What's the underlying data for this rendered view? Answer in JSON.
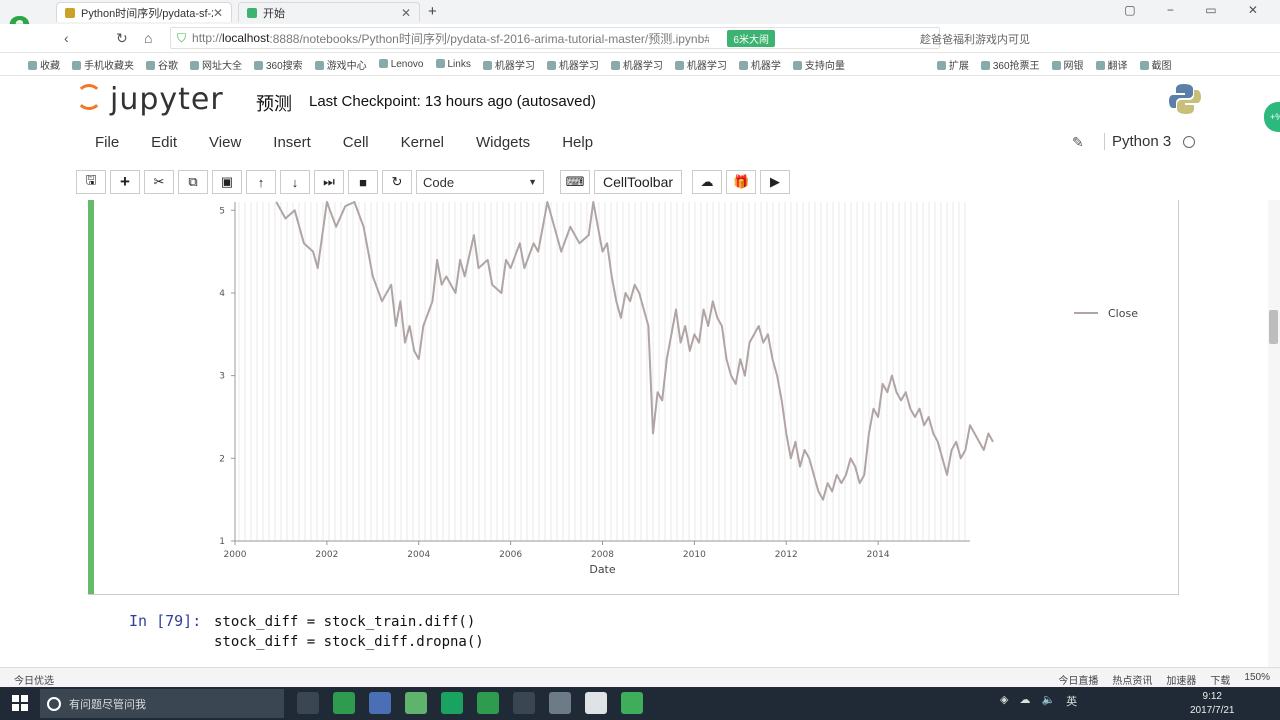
{
  "browser": {
    "tabs": [
      {
        "title": "Python时间序列/pydata-sf-201"
      },
      {
        "title": "开始"
      }
    ],
    "url_host": "localhost",
    "url_prefix": "http://",
    "url_rest": ":8888/notebooks/Python时间序列/pydata-sf-2016-arima-tutorial-master/预测.ipynb#",
    "badge": "6米大闹",
    "search_hint": "趁爸爸福利游戏内可见",
    "bookmarks": [
      "收藏",
      "手机收藏夹",
      "谷歌",
      "网址大全",
      "360搜索",
      "游戏中心",
      "Lenovo",
      "Links",
      "机器学习",
      "机器学习",
      "机器学习",
      "机器学习",
      "机器学",
      "支持向量",
      "扩展",
      "360抢票王",
      "网银",
      "翻译",
      "截图"
    ]
  },
  "jupyter": {
    "logo_text": "jupyter",
    "notebook_name": "预测",
    "checkpoint": "Last Checkpoint: 13 hours ago (autosaved)",
    "menu": [
      "File",
      "Edit",
      "View",
      "Insert",
      "Cell",
      "Kernel",
      "Widgets",
      "Help"
    ],
    "kernel_name": "Python 3",
    "cell_type": "Code",
    "celltoolbar_label": "CellToolbar"
  },
  "chart_data": {
    "type": "line",
    "xlabel": "Date",
    "ylabel": "",
    "x_ticks": [
      "2000",
      "2002",
      "2004",
      "2006",
      "2008",
      "2010",
      "2012",
      "2014"
    ],
    "y_ticks": [
      "1",
      "2",
      "3",
      "4",
      "5"
    ],
    "xlim": [
      2000,
      2016
    ],
    "ylim": [
      1,
      5.1
    ],
    "legend": {
      "placement": "right",
      "entries": [
        "Close"
      ]
    },
    "series": [
      {
        "name": "Close",
        "color": "#b0a4a4",
        "points": [
          [
            2000.9,
            5.1
          ],
          [
            2001.1,
            4.9
          ],
          [
            2001.3,
            5.0
          ],
          [
            2001.5,
            4.6
          ],
          [
            2001.7,
            4.5
          ],
          [
            2001.8,
            4.3
          ],
          [
            2002.0,
            5.1
          ],
          [
            2002.2,
            4.8
          ],
          [
            2002.4,
            5.05
          ],
          [
            2002.6,
            5.1
          ],
          [
            2002.8,
            4.8
          ],
          [
            2003.0,
            4.2
          ],
          [
            2003.2,
            3.9
          ],
          [
            2003.4,
            4.1
          ],
          [
            2003.5,
            3.6
          ],
          [
            2003.6,
            3.9
          ],
          [
            2003.7,
            3.4
          ],
          [
            2003.8,
            3.6
          ],
          [
            2003.9,
            3.3
          ],
          [
            2004.0,
            3.2
          ],
          [
            2004.1,
            3.6
          ],
          [
            2004.3,
            3.9
          ],
          [
            2004.4,
            4.4
          ],
          [
            2004.5,
            4.1
          ],
          [
            2004.6,
            4.2
          ],
          [
            2004.8,
            4.0
          ],
          [
            2004.9,
            4.4
          ],
          [
            2005.0,
            4.2
          ],
          [
            2005.2,
            4.7
          ],
          [
            2005.3,
            4.3
          ],
          [
            2005.5,
            4.4
          ],
          [
            2005.6,
            4.1
          ],
          [
            2005.8,
            4.0
          ],
          [
            2005.9,
            4.4
          ],
          [
            2006.0,
            4.3
          ],
          [
            2006.2,
            4.6
          ],
          [
            2006.3,
            4.3
          ],
          [
            2006.5,
            4.6
          ],
          [
            2006.6,
            4.5
          ],
          [
            2006.7,
            4.8
          ],
          [
            2006.8,
            5.1
          ],
          [
            2006.9,
            4.9
          ],
          [
            2007.1,
            4.5
          ],
          [
            2007.3,
            4.8
          ],
          [
            2007.5,
            4.6
          ],
          [
            2007.7,
            4.7
          ],
          [
            2007.8,
            5.1
          ],
          [
            2007.9,
            4.8
          ],
          [
            2008.0,
            4.5
          ],
          [
            2008.1,
            4.6
          ],
          [
            2008.2,
            4.2
          ],
          [
            2008.3,
            3.9
          ],
          [
            2008.4,
            3.7
          ],
          [
            2008.5,
            4.0
          ],
          [
            2008.6,
            3.9
          ],
          [
            2008.7,
            4.1
          ],
          [
            2008.8,
            4.0
          ],
          [
            2008.9,
            3.8
          ],
          [
            2009.0,
            3.6
          ],
          [
            2009.1,
            2.3
          ],
          [
            2009.2,
            2.8
          ],
          [
            2009.3,
            2.7
          ],
          [
            2009.4,
            3.2
          ],
          [
            2009.5,
            3.5
          ],
          [
            2009.6,
            3.8
          ],
          [
            2009.7,
            3.4
          ],
          [
            2009.8,
            3.6
          ],
          [
            2009.9,
            3.3
          ],
          [
            2010.0,
            3.5
          ],
          [
            2010.1,
            3.4
          ],
          [
            2010.2,
            3.8
          ],
          [
            2010.3,
            3.6
          ],
          [
            2010.4,
            3.9
          ],
          [
            2010.5,
            3.7
          ],
          [
            2010.6,
            3.6
          ],
          [
            2010.7,
            3.2
          ],
          [
            2010.8,
            3.0
          ],
          [
            2010.9,
            2.9
          ],
          [
            2011.0,
            3.2
          ],
          [
            2011.1,
            3.0
          ],
          [
            2011.2,
            3.4
          ],
          [
            2011.3,
            3.5
          ],
          [
            2011.4,
            3.6
          ],
          [
            2011.5,
            3.4
          ],
          [
            2011.6,
            3.5
          ],
          [
            2011.7,
            3.2
          ],
          [
            2011.8,
            3.0
          ],
          [
            2011.9,
            2.7
          ],
          [
            2012.0,
            2.3
          ],
          [
            2012.1,
            2.0
          ],
          [
            2012.2,
            2.2
          ],
          [
            2012.3,
            1.9
          ],
          [
            2012.4,
            2.1
          ],
          [
            2012.5,
            2.0
          ],
          [
            2012.6,
            1.8
          ],
          [
            2012.7,
            1.6
          ],
          [
            2012.8,
            1.5
          ],
          [
            2012.9,
            1.7
          ],
          [
            2013.0,
            1.6
          ],
          [
            2013.1,
            1.8
          ],
          [
            2013.2,
            1.7
          ],
          [
            2013.3,
            1.8
          ],
          [
            2013.4,
            2.0
          ],
          [
            2013.5,
            1.9
          ],
          [
            2013.6,
            1.7
          ],
          [
            2013.7,
            1.8
          ],
          [
            2013.8,
            2.3
          ],
          [
            2013.9,
            2.6
          ],
          [
            2014.0,
            2.5
          ],
          [
            2014.1,
            2.9
          ],
          [
            2014.2,
            2.8
          ],
          [
            2014.3,
            3.0
          ],
          [
            2014.4,
            2.8
          ],
          [
            2014.5,
            2.7
          ],
          [
            2014.6,
            2.8
          ],
          [
            2014.7,
            2.6
          ],
          [
            2014.8,
            2.5
          ],
          [
            2014.9,
            2.6
          ],
          [
            2015.0,
            2.4
          ],
          [
            2015.1,
            2.5
          ],
          [
            2015.2,
            2.3
          ],
          [
            2015.3,
            2.2
          ],
          [
            2015.4,
            2.0
          ],
          [
            2015.5,
            1.8
          ],
          [
            2015.6,
            2.1
          ],
          [
            2015.7,
            2.2
          ],
          [
            2015.8,
            2.0
          ],
          [
            2015.9,
            2.1
          ],
          [
            2016.0,
            2.4
          ],
          [
            2016.1,
            2.3
          ],
          [
            2016.2,
            2.2
          ],
          [
            2016.3,
            2.1
          ],
          [
            2016.4,
            2.3
          ],
          [
            2016.5,
            2.2
          ]
        ]
      }
    ]
  },
  "code_cell": {
    "prompt": "In [79]:",
    "lines": [
      "stock_diff = stock_train.diff()",
      "stock_diff = stock_diff.dropna()"
    ]
  },
  "statusbar": {
    "left": "今日优选",
    "right": [
      "今日直播",
      "热点资讯",
      "加速器",
      "下载",
      "150%"
    ]
  },
  "taskbar": {
    "search_placeholder": "有问题尽管问我",
    "tray_lang": "英",
    "time": "9:12",
    "date": "2017/7/21"
  }
}
